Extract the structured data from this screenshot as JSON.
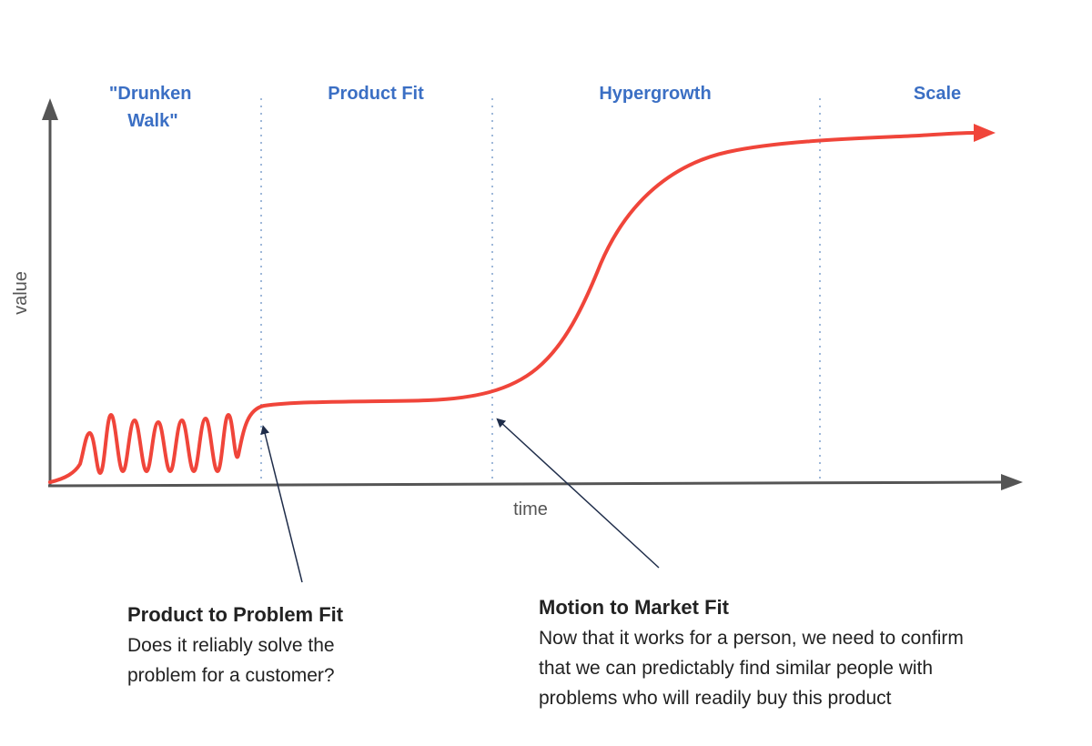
{
  "phases": [
    {
      "lines": [
        "\"Drunken",
        "Walk\""
      ]
    },
    {
      "lines": [
        "Product Fit"
      ]
    },
    {
      "lines": [
        "Hypergrowth"
      ]
    },
    {
      "lines": [
        "Scale"
      ]
    }
  ],
  "axes": {
    "y_label": "value",
    "x_label": "time"
  },
  "annotations": [
    {
      "title": "Product to Problem Fit",
      "lines": [
        "Does it reliably solve the",
        "problem for a customer?"
      ]
    },
    {
      "title": "Motion to Market Fit",
      "lines": [
        "Now that it works for a person, we need to confirm",
        "that we can predictably find similar people with",
        "problems who will readily buy this product"
      ]
    }
  ],
  "colors": {
    "curve": "#f0453a",
    "axis": "#555555",
    "phase_label": "#3b6fc4",
    "divider": "#9fb8d9",
    "pointer": "#1f2d4a"
  }
}
